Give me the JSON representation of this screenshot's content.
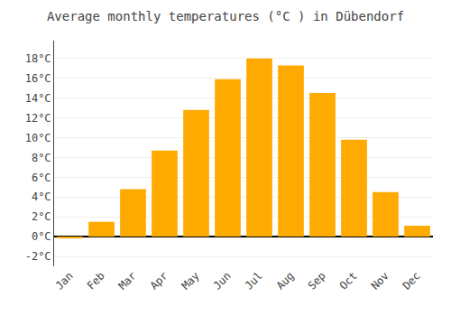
{
  "chart_data": {
    "type": "bar",
    "title": "Average monthly temperatures (°C ) in Dübendorf",
    "categories": [
      "Jan",
      "Feb",
      "Mar",
      "Apr",
      "May",
      "Jun",
      "Jul",
      "Aug",
      "Sep",
      "Oct",
      "Nov",
      "Dec"
    ],
    "values": [
      -0.1,
      1.5,
      4.8,
      8.7,
      12.8,
      15.9,
      18.0,
      17.3,
      14.5,
      9.8,
      4.5,
      1.1
    ],
    "color": "#FFAA00",
    "ylim": [
      -3.0,
      19.8
    ],
    "yticks": [
      {
        "value": -2,
        "label": "-2°C"
      },
      {
        "value": 0,
        "label": "0°C"
      },
      {
        "value": 2,
        "label": "2°C"
      },
      {
        "value": 4,
        "label": "4°C"
      },
      {
        "value": 6,
        "label": "6°C"
      },
      {
        "value": 8,
        "label": "8°C"
      },
      {
        "value": 10,
        "label": "10°C"
      },
      {
        "value": 12,
        "label": "12°C"
      },
      {
        "value": 14,
        "label": "14°C"
      },
      {
        "value": 16,
        "label": "16°C"
      },
      {
        "value": 18,
        "label": "18°C"
      }
    ],
    "grid": true
  }
}
